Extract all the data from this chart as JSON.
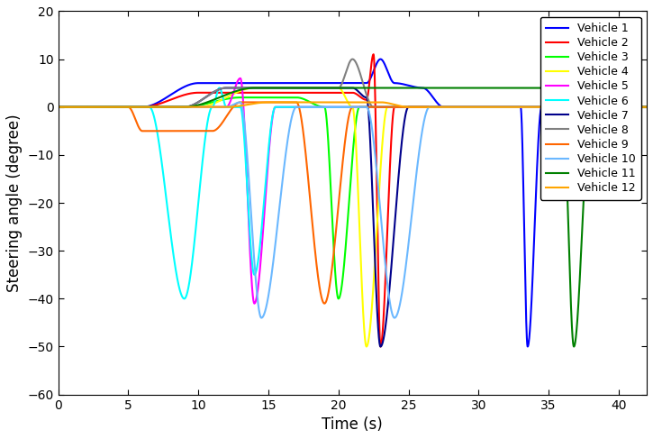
{
  "xlabel": "Time (s)",
  "ylabel": "Steering angle (degree)",
  "xlim": [
    0,
    42
  ],
  "ylim": [
    -60,
    20
  ],
  "xticks": [
    0,
    5,
    10,
    15,
    20,
    25,
    30,
    35,
    40
  ],
  "yticks": [
    -60,
    -50,
    -40,
    -30,
    -20,
    -10,
    0,
    10,
    20
  ],
  "vehicles": [
    {
      "label": "Vehicle 1",
      "color": "#0000FF"
    },
    {
      "label": "Vehicle 2",
      "color": "#FF0000"
    },
    {
      "label": "Vehicle 3",
      "color": "#00FF00"
    },
    {
      "label": "Vehicle 4",
      "color": "#FFFF00"
    },
    {
      "label": "Vehicle 5",
      "color": "#FF00FF"
    },
    {
      "label": "Vehicle 6",
      "color": "#00FFFF"
    },
    {
      "label": "Vehicle 7",
      "color": "#00008B"
    },
    {
      "label": "Vehicle 8",
      "color": "#808080"
    },
    {
      "label": "Vehicle 9",
      "color": "#FF6600"
    },
    {
      "label": "Vehicle 10",
      "color": "#6BB8FF"
    },
    {
      "label": "Vehicle 11",
      "color": "#008000"
    },
    {
      "label": "Vehicle 12",
      "color": "#FFA500"
    }
  ],
  "background_color": "#FFFFFF",
  "linewidth": 1.5
}
